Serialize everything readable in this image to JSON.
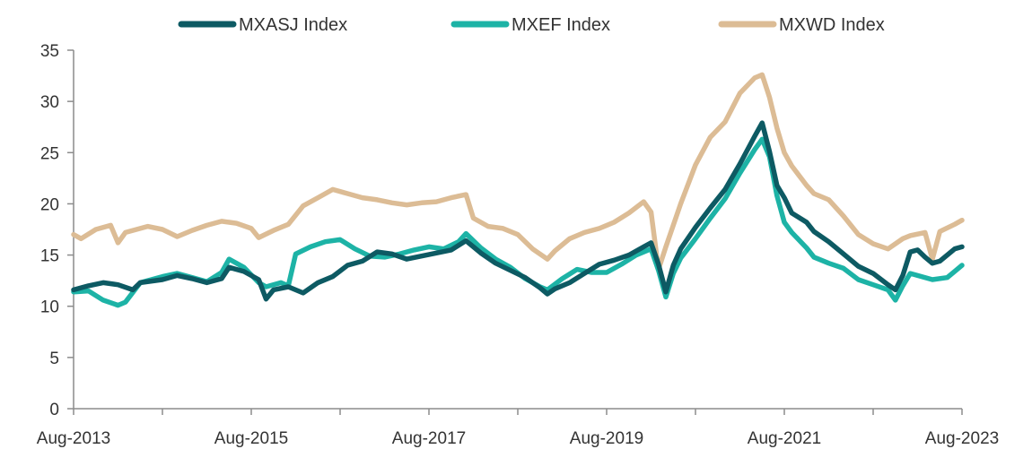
{
  "chart_data": {
    "type": "line",
    "title": "",
    "xlabel": "",
    "ylabel": "",
    "ylim": [
      0,
      35
    ],
    "yticks": [
      0,
      5,
      10,
      15,
      20,
      25,
      30,
      35
    ],
    "xlim": [
      "2013-08",
      "2023-08"
    ],
    "xtick_labels": [
      "Aug-2013",
      "Aug-2015",
      "Aug-2017",
      "Aug-2019",
      "Aug-2021",
      "Aug-2023"
    ],
    "grid": false,
    "legend_position": "top",
    "series": [
      {
        "name": "MXASJ Index",
        "color": "#0d5a63",
        "points": [
          [
            "2013-08",
            11.6
          ],
          [
            "2013-10",
            12.0
          ],
          [
            "2013-12",
            12.3
          ],
          [
            "2014-02",
            12.1
          ],
          [
            "2014-04",
            11.6
          ],
          [
            "2014-05",
            12.3
          ],
          [
            "2014-08",
            12.6
          ],
          [
            "2014-10",
            13.0
          ],
          [
            "2014-12",
            12.7
          ],
          [
            "2015-02",
            12.3
          ],
          [
            "2015-04",
            12.7
          ],
          [
            "2015-05",
            13.8
          ],
          [
            "2015-07",
            13.4
          ],
          [
            "2015-09",
            12.6
          ],
          [
            "2015-10",
            10.7
          ],
          [
            "2015-11",
            11.6
          ],
          [
            "2016-01",
            11.9
          ],
          [
            "2016-03",
            11.3
          ],
          [
            "2016-05",
            12.3
          ],
          [
            "2016-07",
            12.9
          ],
          [
            "2016-09",
            14.0
          ],
          [
            "2016-11",
            14.4
          ],
          [
            "2017-01",
            15.3
          ],
          [
            "2017-03",
            15.1
          ],
          [
            "2017-05",
            14.6
          ],
          [
            "2017-07",
            14.9
          ],
          [
            "2017-09",
            15.2
          ],
          [
            "2017-11",
            15.5
          ],
          [
            "2018-01",
            16.4
          ],
          [
            "2018-03",
            15.2
          ],
          [
            "2018-05",
            14.2
          ],
          [
            "2018-07",
            13.5
          ],
          [
            "2018-09",
            12.8
          ],
          [
            "2018-11",
            11.8
          ],
          [
            "2018-12",
            11.2
          ],
          [
            "2019-01",
            11.7
          ],
          [
            "2019-03",
            12.3
          ],
          [
            "2019-05",
            13.2
          ],
          [
            "2019-07",
            14.1
          ],
          [
            "2019-09",
            14.5
          ],
          [
            "2019-11",
            15.0
          ],
          [
            "2020-01",
            15.8
          ],
          [
            "2020-02",
            16.2
          ],
          [
            "2020-03",
            14.1
          ],
          [
            "2020-04",
            11.4
          ],
          [
            "2020-05",
            14.0
          ],
          [
            "2020-06",
            15.6
          ],
          [
            "2020-08",
            17.7
          ],
          [
            "2020-10",
            19.6
          ],
          [
            "2020-12",
            21.4
          ],
          [
            "2021-02",
            23.9
          ],
          [
            "2021-04",
            26.6
          ],
          [
            "2021-05",
            27.9
          ],
          [
            "2021-06",
            25.1
          ],
          [
            "2021-07",
            21.8
          ],
          [
            "2021-08",
            20.6
          ],
          [
            "2021-09",
            19.1
          ],
          [
            "2021-11",
            18.2
          ],
          [
            "2021-12",
            17.3
          ],
          [
            "2022-02",
            16.3
          ],
          [
            "2022-04",
            15.1
          ],
          [
            "2022-06",
            13.9
          ],
          [
            "2022-08",
            13.2
          ],
          [
            "2022-10",
            12.1
          ],
          [
            "2022-11",
            11.6
          ],
          [
            "2022-12",
            13.0
          ],
          [
            "2023-01",
            15.3
          ],
          [
            "2023-02",
            15.5
          ],
          [
            "2023-03",
            14.8
          ],
          [
            "2023-04",
            14.2
          ],
          [
            "2023-05",
            14.4
          ],
          [
            "2023-06",
            15.0
          ],
          [
            "2023-07",
            15.6
          ],
          [
            "2023-08",
            15.8
          ]
        ]
      },
      {
        "name": "MXEF Index",
        "color": "#1db3a6",
        "points": [
          [
            "2013-08",
            11.4
          ],
          [
            "2013-10",
            11.5
          ],
          [
            "2013-12",
            10.6
          ],
          [
            "2014-02",
            10.1
          ],
          [
            "2014-03",
            10.4
          ],
          [
            "2014-05",
            12.3
          ],
          [
            "2014-08",
            12.9
          ],
          [
            "2014-10",
            13.2
          ],
          [
            "2014-12",
            12.8
          ],
          [
            "2015-02",
            12.4
          ],
          [
            "2015-04",
            13.3
          ],
          [
            "2015-05",
            14.6
          ],
          [
            "2015-07",
            13.8
          ],
          [
            "2015-09",
            12.3
          ],
          [
            "2015-10",
            11.9
          ],
          [
            "2015-12",
            12.3
          ],
          [
            "2016-01",
            12.0
          ],
          [
            "2016-02",
            15.1
          ],
          [
            "2016-04",
            15.8
          ],
          [
            "2016-06",
            16.3
          ],
          [
            "2016-08",
            16.5
          ],
          [
            "2016-10",
            15.6
          ],
          [
            "2016-12",
            14.9
          ],
          [
            "2017-02",
            14.8
          ],
          [
            "2017-04",
            15.1
          ],
          [
            "2017-06",
            15.5
          ],
          [
            "2017-08",
            15.8
          ],
          [
            "2017-10",
            15.6
          ],
          [
            "2017-12",
            16.3
          ],
          [
            "2018-01",
            17.1
          ],
          [
            "2018-03",
            15.7
          ],
          [
            "2018-05",
            14.6
          ],
          [
            "2018-07",
            13.8
          ],
          [
            "2018-09",
            12.7
          ],
          [
            "2018-11",
            11.9
          ],
          [
            "2018-12",
            11.6
          ],
          [
            "2019-02",
            12.7
          ],
          [
            "2019-04",
            13.6
          ],
          [
            "2019-06",
            13.3
          ],
          [
            "2019-08",
            13.3
          ],
          [
            "2019-10",
            14.1
          ],
          [
            "2019-12",
            15.0
          ],
          [
            "2020-02",
            15.6
          ],
          [
            "2020-03",
            13.5
          ],
          [
            "2020-04",
            10.9
          ],
          [
            "2020-05",
            13.2
          ],
          [
            "2020-06",
            14.7
          ],
          [
            "2020-08",
            16.6
          ],
          [
            "2020-10",
            18.6
          ],
          [
            "2020-12",
            20.5
          ],
          [
            "2021-02",
            23.0
          ],
          [
            "2021-04",
            25.3
          ],
          [
            "2021-05",
            26.3
          ],
          [
            "2021-06",
            24.6
          ],
          [
            "2021-07",
            20.8
          ],
          [
            "2021-08",
            18.2
          ],
          [
            "2021-09",
            17.2
          ],
          [
            "2021-11",
            15.7
          ],
          [
            "2021-12",
            14.8
          ],
          [
            "2022-02",
            14.2
          ],
          [
            "2022-04",
            13.7
          ],
          [
            "2022-06",
            12.6
          ],
          [
            "2022-08",
            12.1
          ],
          [
            "2022-10",
            11.6
          ],
          [
            "2022-11",
            10.6
          ],
          [
            "2022-12",
            12.0
          ],
          [
            "2023-01",
            13.2
          ],
          [
            "2023-02",
            13.0
          ],
          [
            "2023-04",
            12.6
          ],
          [
            "2023-06",
            12.8
          ],
          [
            "2023-07",
            13.4
          ],
          [
            "2023-08",
            14.0
          ]
        ]
      },
      {
        "name": "MXWD Index",
        "color": "#dcbc95",
        "points": [
          [
            "2013-08",
            17.0
          ],
          [
            "2013-09",
            16.6
          ],
          [
            "2013-11",
            17.5
          ],
          [
            "2014-01",
            17.9
          ],
          [
            "2014-02",
            16.2
          ],
          [
            "2014-03",
            17.2
          ],
          [
            "2014-06",
            17.8
          ],
          [
            "2014-08",
            17.5
          ],
          [
            "2014-10",
            16.8
          ],
          [
            "2014-12",
            17.4
          ],
          [
            "2015-02",
            17.9
          ],
          [
            "2015-04",
            18.3
          ],
          [
            "2015-06",
            18.1
          ],
          [
            "2015-08",
            17.6
          ],
          [
            "2015-09",
            16.7
          ],
          [
            "2015-11",
            17.4
          ],
          [
            "2016-01",
            18.0
          ],
          [
            "2016-03",
            19.8
          ],
          [
            "2016-05",
            20.6
          ],
          [
            "2016-07",
            21.4
          ],
          [
            "2016-09",
            21.0
          ],
          [
            "2016-11",
            20.6
          ],
          [
            "2017-01",
            20.4
          ],
          [
            "2017-03",
            20.1
          ],
          [
            "2017-05",
            19.9
          ],
          [
            "2017-07",
            20.1
          ],
          [
            "2017-09",
            20.2
          ],
          [
            "2017-11",
            20.6
          ],
          [
            "2018-01",
            20.9
          ],
          [
            "2018-02",
            18.6
          ],
          [
            "2018-04",
            17.8
          ],
          [
            "2018-06",
            17.6
          ],
          [
            "2018-08",
            17.0
          ],
          [
            "2018-10",
            15.6
          ],
          [
            "2018-12",
            14.6
          ],
          [
            "2019-01",
            15.4
          ],
          [
            "2019-03",
            16.6
          ],
          [
            "2019-05",
            17.2
          ],
          [
            "2019-07",
            17.6
          ],
          [
            "2019-09",
            18.2
          ],
          [
            "2019-11",
            19.1
          ],
          [
            "2020-01",
            20.2
          ],
          [
            "2020-02",
            19.2
          ],
          [
            "2020-03",
            13.6
          ],
          [
            "2020-04",
            15.8
          ],
          [
            "2020-06",
            20.0
          ],
          [
            "2020-08",
            23.8
          ],
          [
            "2020-10",
            26.5
          ],
          [
            "2020-12",
            28.0
          ],
          [
            "2021-02",
            30.8
          ],
          [
            "2021-04",
            32.3
          ],
          [
            "2021-05",
            32.6
          ],
          [
            "2021-06",
            30.4
          ],
          [
            "2021-07",
            27.4
          ],
          [
            "2021-08",
            25.0
          ],
          [
            "2021-09",
            23.7
          ],
          [
            "2021-11",
            21.8
          ],
          [
            "2021-12",
            21.0
          ],
          [
            "2022-02",
            20.4
          ],
          [
            "2022-04",
            18.8
          ],
          [
            "2022-06",
            17.0
          ],
          [
            "2022-08",
            16.1
          ],
          [
            "2022-10",
            15.6
          ],
          [
            "2022-12",
            16.6
          ],
          [
            "2023-01",
            16.9
          ],
          [
            "2023-03",
            17.2
          ],
          [
            "2023-04",
            14.6
          ],
          [
            "2023-05",
            17.3
          ],
          [
            "2023-07",
            18.0
          ],
          [
            "2023-08",
            18.4
          ]
        ]
      }
    ]
  }
}
